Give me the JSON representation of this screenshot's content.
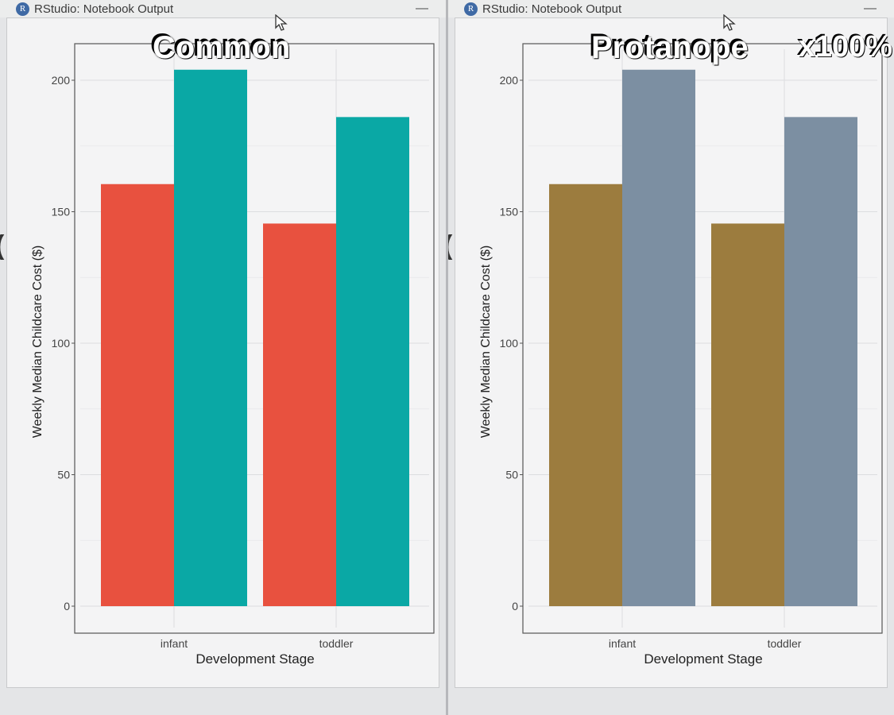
{
  "windows": [
    {
      "title": "RStudio: Notebook Output",
      "overlay_title": "Common"
    },
    {
      "title": "RStudio: Notebook Output",
      "overlay_title": "Protanope",
      "zoom_label": "x100%"
    }
  ],
  "icons": {
    "app": "r-logo-icon",
    "cursor": "mouse-cursor-icon",
    "minimize": "minimize-icon"
  },
  "chart_data": [
    {
      "type": "bar",
      "categories": [
        "infant",
        "toddler"
      ],
      "series": [
        {
          "values": [
            160.5,
            145.5
          ],
          "color": "#e8513f"
        },
        {
          "values": [
            204,
            186
          ],
          "color": "#0aa8a5"
        }
      ],
      "xlabel": "Development Stage",
      "ylabel": "Weekly Median Childcare Cost ($)",
      "ylim": [
        0,
        210
      ],
      "yticks": [
        0,
        50,
        100,
        150,
        200
      ],
      "grid": true
    },
    {
      "type": "bar",
      "categories": [
        "infant",
        "toddler"
      ],
      "series": [
        {
          "values": [
            160.5,
            145.5
          ],
          "color": "#9c7c3e"
        },
        {
          "values": [
            204,
            186
          ],
          "color": "#7c8fa2"
        }
      ],
      "xlabel": "Development Stage",
      "ylabel": "Weekly Median Childcare Cost ($)",
      "ylim": [
        0,
        210
      ],
      "yticks": [
        0,
        50,
        100,
        150,
        200
      ],
      "grid": true
    }
  ]
}
